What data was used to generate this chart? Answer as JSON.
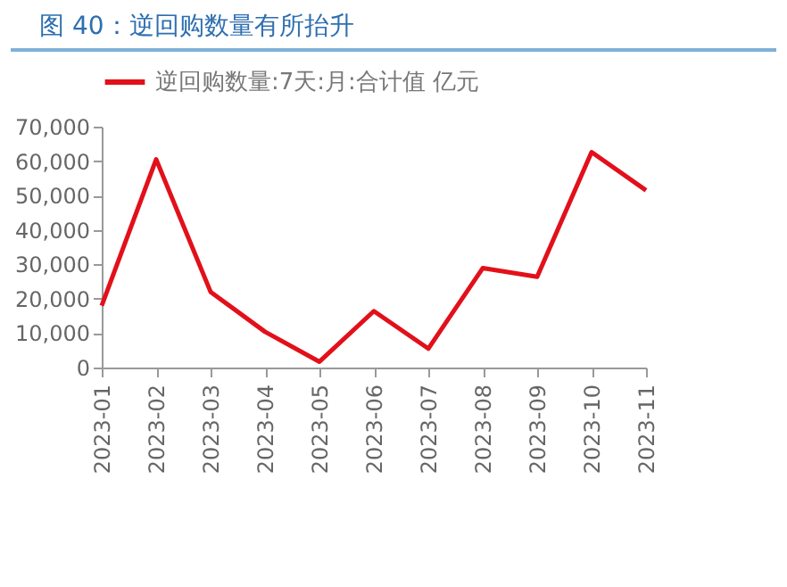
{
  "chart_data": {
    "type": "line",
    "title": "图 40：逆回购数量有所抬升",
    "categories": [
      "2023-01",
      "2023-02",
      "2023-03",
      "2023-04",
      "2023-05",
      "2023-06",
      "2023-07",
      "2023-08",
      "2023-09",
      "2023-10",
      "2023-11"
    ],
    "series": [
      {
        "name": "逆回购数量:7天:月:合计值 亿元",
        "color": "#e2101a",
        "values": [
          18000,
          60500,
          22000,
          10400,
          1700,
          16400,
          5500,
          28900,
          26400,
          62600,
          51500
        ]
      }
    ],
    "ylim": [
      0,
      70000
    ],
    "yticks": [
      0,
      {
        "value": 10000,
        "label": "10,000"
      },
      {
        "value": 20000,
        "label": "20,000"
      },
      {
        "value": 30000,
        "label": "30,000"
      },
      {
        "value": 40000,
        "label": "40,000"
      },
      {
        "value": 50000,
        "label": "50,000"
      },
      {
        "value": 60000,
        "label": "60,000"
      },
      {
        "value": 70000,
        "label": "70,000"
      }
    ],
    "legend": "top",
    "grid": false,
    "marker": "none",
    "line_style": "solid"
  }
}
